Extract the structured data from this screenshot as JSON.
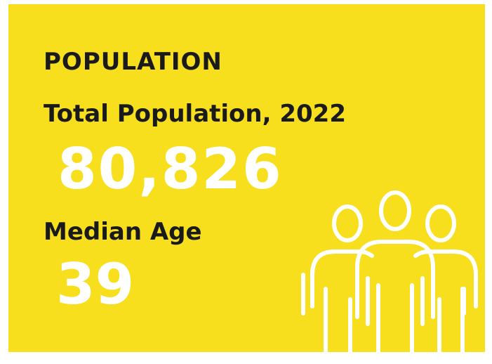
{
  "header": {
    "title": "POPULATION"
  },
  "stats": [
    {
      "label": "Total Population, 2022",
      "value": "80,826"
    },
    {
      "label": "Median Age",
      "value": "39"
    }
  ]
}
